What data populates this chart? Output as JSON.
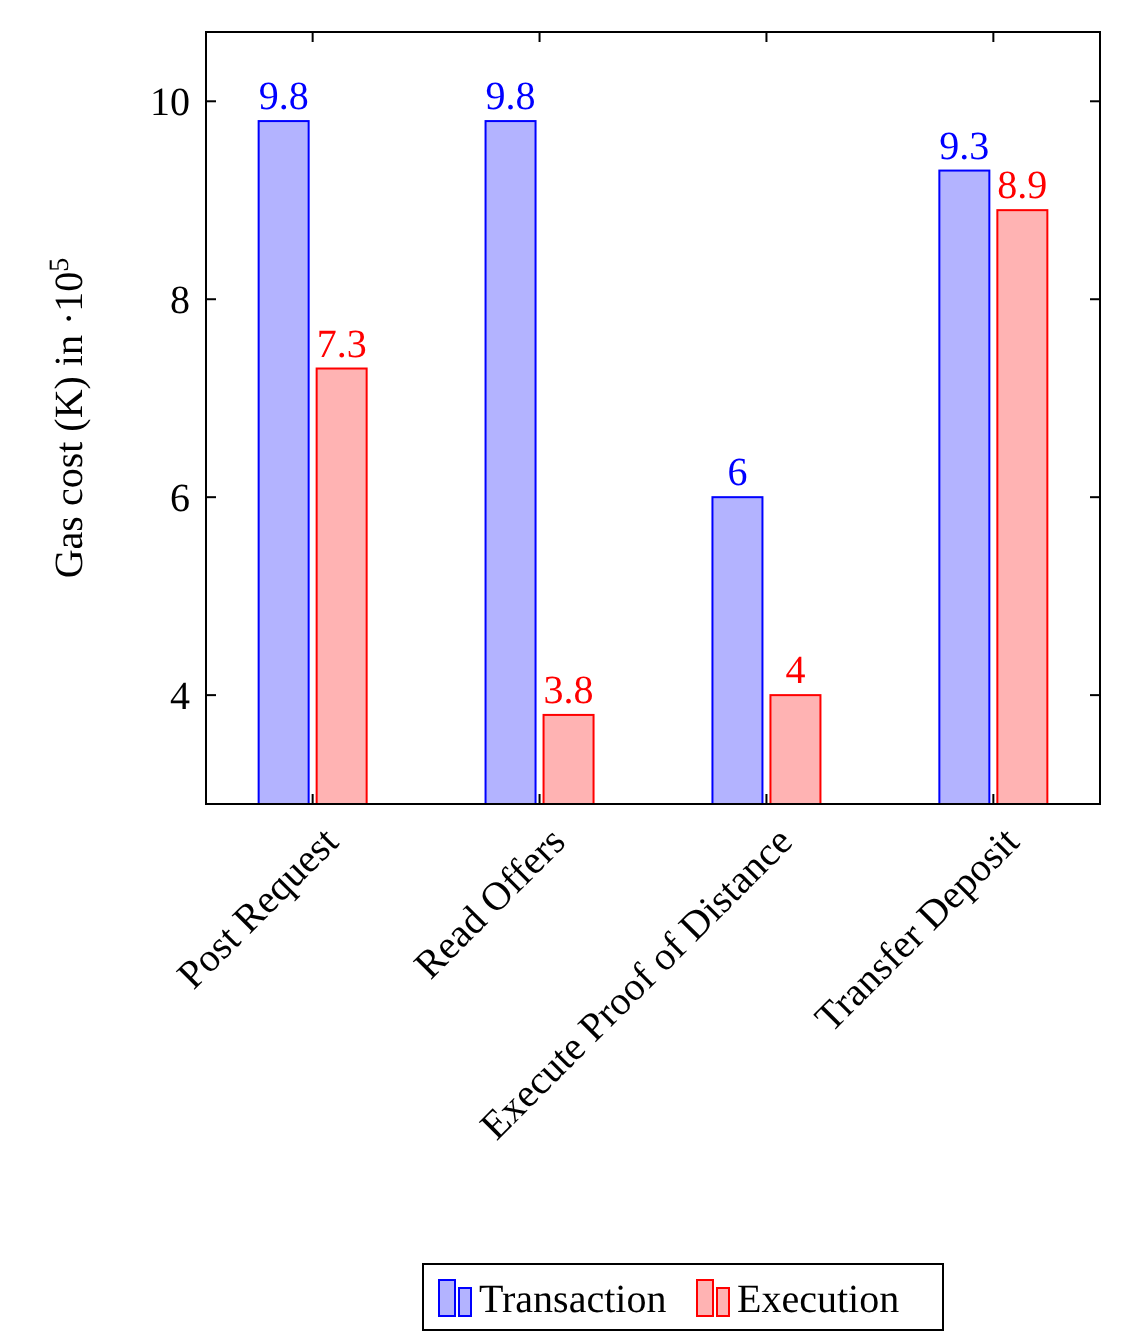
{
  "chart_data": {
    "type": "bar",
    "ylabel": "Gas cost (K) in ·10$^{5}$",
    "categories": [
      "Post Request",
      "Read Offers",
      "Execute Proof of Distance",
      "Transfer Deposit"
    ],
    "series": [
      {
        "name": "Transaction",
        "color": "#b3b3ff",
        "values": [
          9.8,
          9.8,
          6,
          9.3
        ]
      },
      {
        "name": "Execution",
        "color": "#ffb3b3",
        "values": [
          7.3,
          3.8,
          4,
          8.9
        ]
      }
    ],
    "ylim": [
      2.9,
      10.7
    ],
    "yticks": [
      4,
      6,
      8,
      10
    ],
    "data_labels": true,
    "legend": "bottom",
    "grid": false
  }
}
